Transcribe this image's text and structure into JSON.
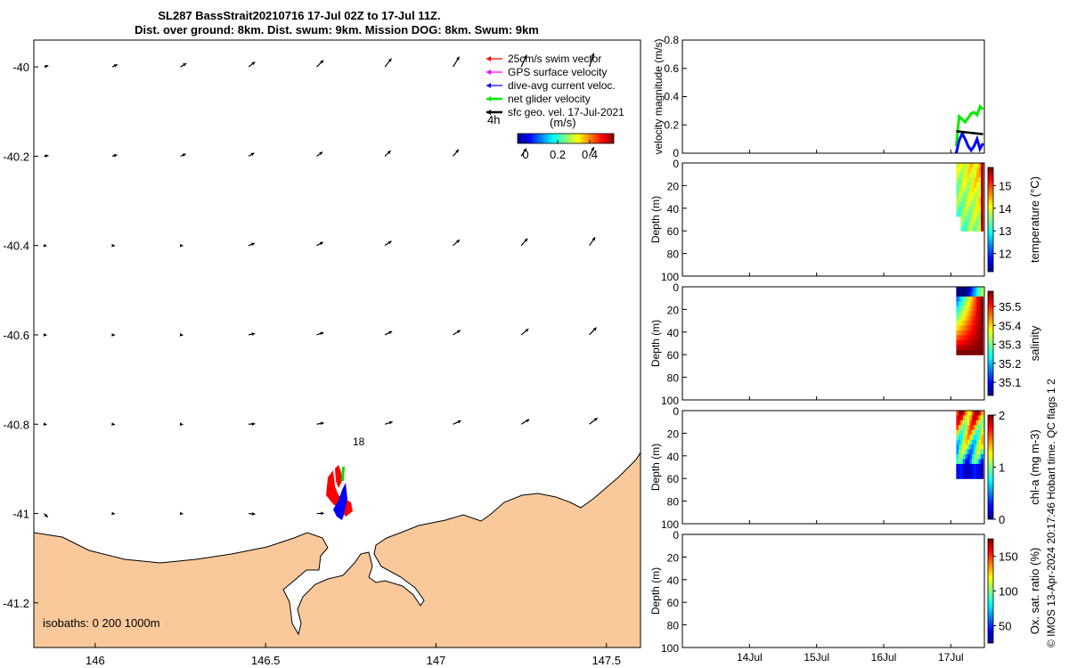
{
  "header": {
    "title_line1": "SL287 BassStrait20210716 17-Jul 02Z to 17-Jul 11Z.",
    "title_line2": "Dist. over ground: 8km. Dist. swum: 9km. Mission DOG: 8km. Swum: 9km"
  },
  "colors": {
    "land": "#f9c99b",
    "swim": "#ff0000",
    "gps": "#ff00ff",
    "current": "#0000ff",
    "net": "#00ee00",
    "geo": "#000000"
  },
  "map": {
    "xticks": [
      "146",
      "146.5",
      "147",
      "147.5"
    ],
    "yticks": [
      "-40",
      "-40.2",
      "-40.4",
      "-40.6",
      "-40.8",
      "-41",
      "-41.2"
    ],
    "xlim": [
      145.82,
      147.6
    ],
    "ylim": [
      -41.3,
      -39.94
    ],
    "isobath_label": "isobaths: 0   200  1000m",
    "annotation_18": "18",
    "annotation_4h": "4h",
    "legend": [
      {
        "key": "swim",
        "label": "25cm/s swim vector",
        "color": "#ff0000"
      },
      {
        "key": "gps",
        "label": "GPS surface velocity",
        "color": "#ff00ff"
      },
      {
        "key": "current",
        "label": "dive-avg current veloc.",
        "color": "#0000ff"
      },
      {
        "key": "net",
        "label": "net glider velocity",
        "color": "#00ee00"
      },
      {
        "key": "geo",
        "label": "sfc geo. vel. 17-Jul-2021",
        "color": "#000000"
      }
    ],
    "colorbar": {
      "label": "(m/s)",
      "ticks": [
        "0",
        "0.2",
        "0.4"
      ],
      "range": [
        -0.05,
        0.55
      ]
    }
  },
  "chart_data": [
    {
      "type": "line",
      "ylabel": "velocity magnitude (m/s)",
      "ylim": [
        0,
        0.8
      ],
      "yticks": [
        "0",
        "0.2",
        "0.4",
        "0.6",
        "0.8"
      ],
      "x_range_days": [
        "13-Jul",
        "17-Jul"
      ],
      "series": [
        {
          "key": "net",
          "color": "#00ee00",
          "x": [
            "17-Jul 02Z",
            "17-Jul 03Z",
            "17-Jul 04Z",
            "17-Jul 05Z",
            "17-Jul 06Z",
            "17-Jul 07Z",
            "17-Jul 08Z",
            "17-Jul 09Z",
            "17-Jul 10Z",
            "17-Jul 11Z"
          ],
          "values": [
            0.05,
            0.26,
            0.24,
            0.22,
            0.25,
            0.28,
            0.29,
            0.27,
            0.33,
            0.31
          ]
        },
        {
          "key": "current",
          "color": "#0000ff",
          "x": [
            "17-Jul 02Z",
            "17-Jul 03Z",
            "17-Jul 04Z",
            "17-Jul 05Z",
            "17-Jul 06Z",
            "17-Jul 07Z",
            "17-Jul 08Z",
            "17-Jul 09Z",
            "17-Jul 10Z",
            "17-Jul 11Z"
          ],
          "values": [
            0.0,
            0.09,
            0.14,
            0.1,
            0.05,
            0.02,
            0.05,
            0.1,
            0.03,
            0.07
          ]
        },
        {
          "key": "geo",
          "color": "#000000",
          "x": [
            "17-Jul 02Z",
            "17-Jul 11Z"
          ],
          "values": [
            0.155,
            0.135
          ]
        }
      ]
    },
    {
      "type": "heatmap",
      "variable": "temperature",
      "label": "temperature (°C)",
      "ylabel": "Depth (m)",
      "ylim": [
        100,
        0
      ],
      "yticks": [
        "0",
        "20",
        "40",
        "60",
        "80",
        "100"
      ],
      "colorbar_ticks": [
        "12",
        "13",
        "14",
        "15"
      ],
      "crange": [
        11.2,
        15.8
      ],
      "typical": 13.8,
      "max_depth": 60
    },
    {
      "type": "heatmap",
      "variable": "salinity",
      "label": "salinity",
      "ylabel": "Depth (m)",
      "ylim": [
        100,
        0
      ],
      "yticks": [
        "0",
        "20",
        "40",
        "60",
        "80",
        "100"
      ],
      "colorbar_ticks": [
        "35.1",
        "35.2",
        "35.3",
        "35.4",
        "35.5"
      ],
      "crange": [
        35.03,
        35.58
      ],
      "typical": 35.55,
      "max_depth": 60
    },
    {
      "type": "heatmap",
      "variable": "chl-a",
      "label": "chl-a (mg m-3)",
      "ylabel": "Depth (m)",
      "ylim": [
        100,
        0
      ],
      "yticks": [
        "0",
        "20",
        "40",
        "60",
        "80",
        "100"
      ],
      "colorbar_ticks": [
        "0",
        "1",
        "2"
      ],
      "crange": [
        0,
        2
      ],
      "typical": 1.0,
      "max_depth": 60
    },
    {
      "type": "heatmap",
      "variable": "oxygen",
      "label": "Ox. sat. ratio (%)",
      "ylabel": "Depth (m)",
      "ylim": [
        100,
        0
      ],
      "yticks": [
        "0",
        "20",
        "40",
        "60",
        "80",
        "100"
      ],
      "colorbar_ticks": [
        "50",
        "100",
        "150"
      ],
      "crange": [
        25,
        175
      ]
    }
  ],
  "time_axis": {
    "ticks": [
      "14Jul",
      "15Jul",
      "16Jul",
      "17Jul"
    ]
  },
  "credit": "© IMOS 13-Apr-2024 20:17:46 Hobart time. QC flags 1  2"
}
